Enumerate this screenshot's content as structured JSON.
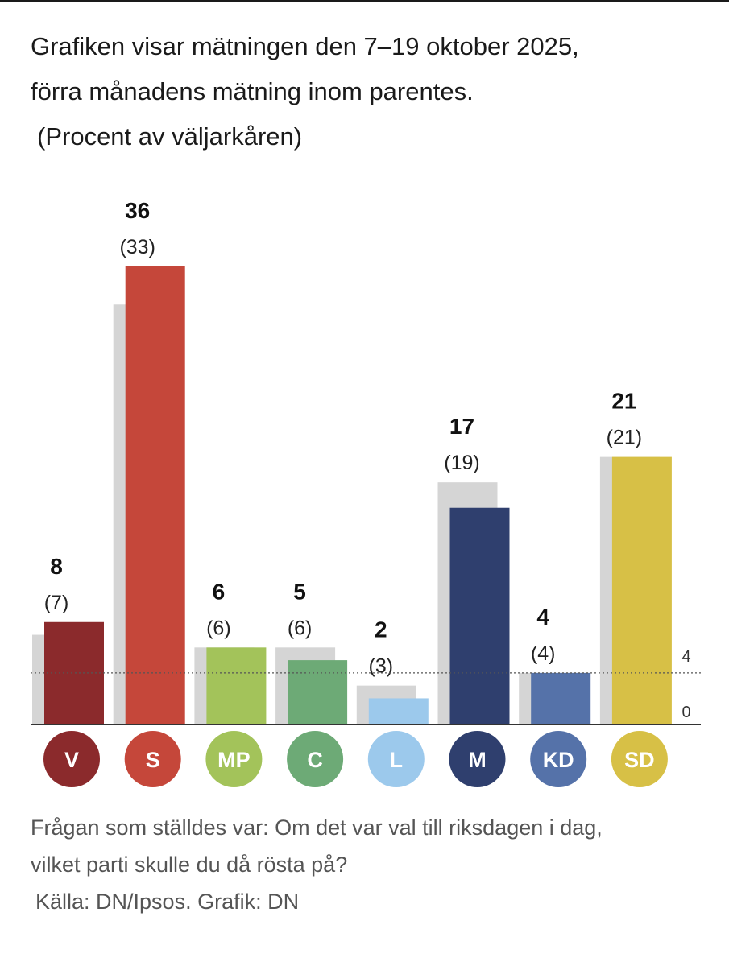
{
  "header": {
    "title_line1": "Grafiken visar mätningen den 7–19 oktober 2025,",
    "title_line2": "förra månadens mätning inom parentes.",
    "subtitle": "(Procent av väljarkåren)"
  },
  "chart_data": {
    "type": "bar",
    "title": "Grafiken visar mätningen den 7–19 oktober 2025, förra månadens mätning inom parentes.",
    "ylabel": "Procent av väljarkåren",
    "categories": [
      "V",
      "S",
      "MP",
      "C",
      "L",
      "M",
      "KD",
      "SD"
    ],
    "series": [
      {
        "name": "Oktober 2025",
        "values": [
          8,
          36,
          6,
          5,
          2,
          17,
          4,
          21
        ]
      },
      {
        "name": "Förra månaden",
        "values": [
          7,
          33,
          6,
          6,
          3,
          19,
          4,
          21
        ]
      }
    ],
    "current_labels": [
      "8",
      "36",
      "6",
      "5",
      "2",
      "17",
      "4",
      "21"
    ],
    "previous_labels": [
      "(7)",
      "(33)",
      "(6)",
      "(6)",
      "(3)",
      "(19)",
      "(4)",
      "(21)"
    ],
    "colors": [
      "#8b2a2c",
      "#c5473a",
      "#a3c35a",
      "#6daa76",
      "#9cc9ec",
      "#2f3f6e",
      "#5572a9",
      "#d7c046"
    ],
    "previous_color": "#d5d5d5",
    "yticks": [
      0,
      4
    ],
    "ytick_labels": [
      "0",
      "4"
    ],
    "reference_line": 4,
    "ylim": [
      0,
      37
    ]
  },
  "footer": {
    "question_line1": "Frågan som ställdes var: Om det var val till riksdagen i dag,",
    "question_line2": "vilket parti skulle du då rösta på?",
    "source": "Källa: DN/Ipsos. Grafik: DN"
  }
}
